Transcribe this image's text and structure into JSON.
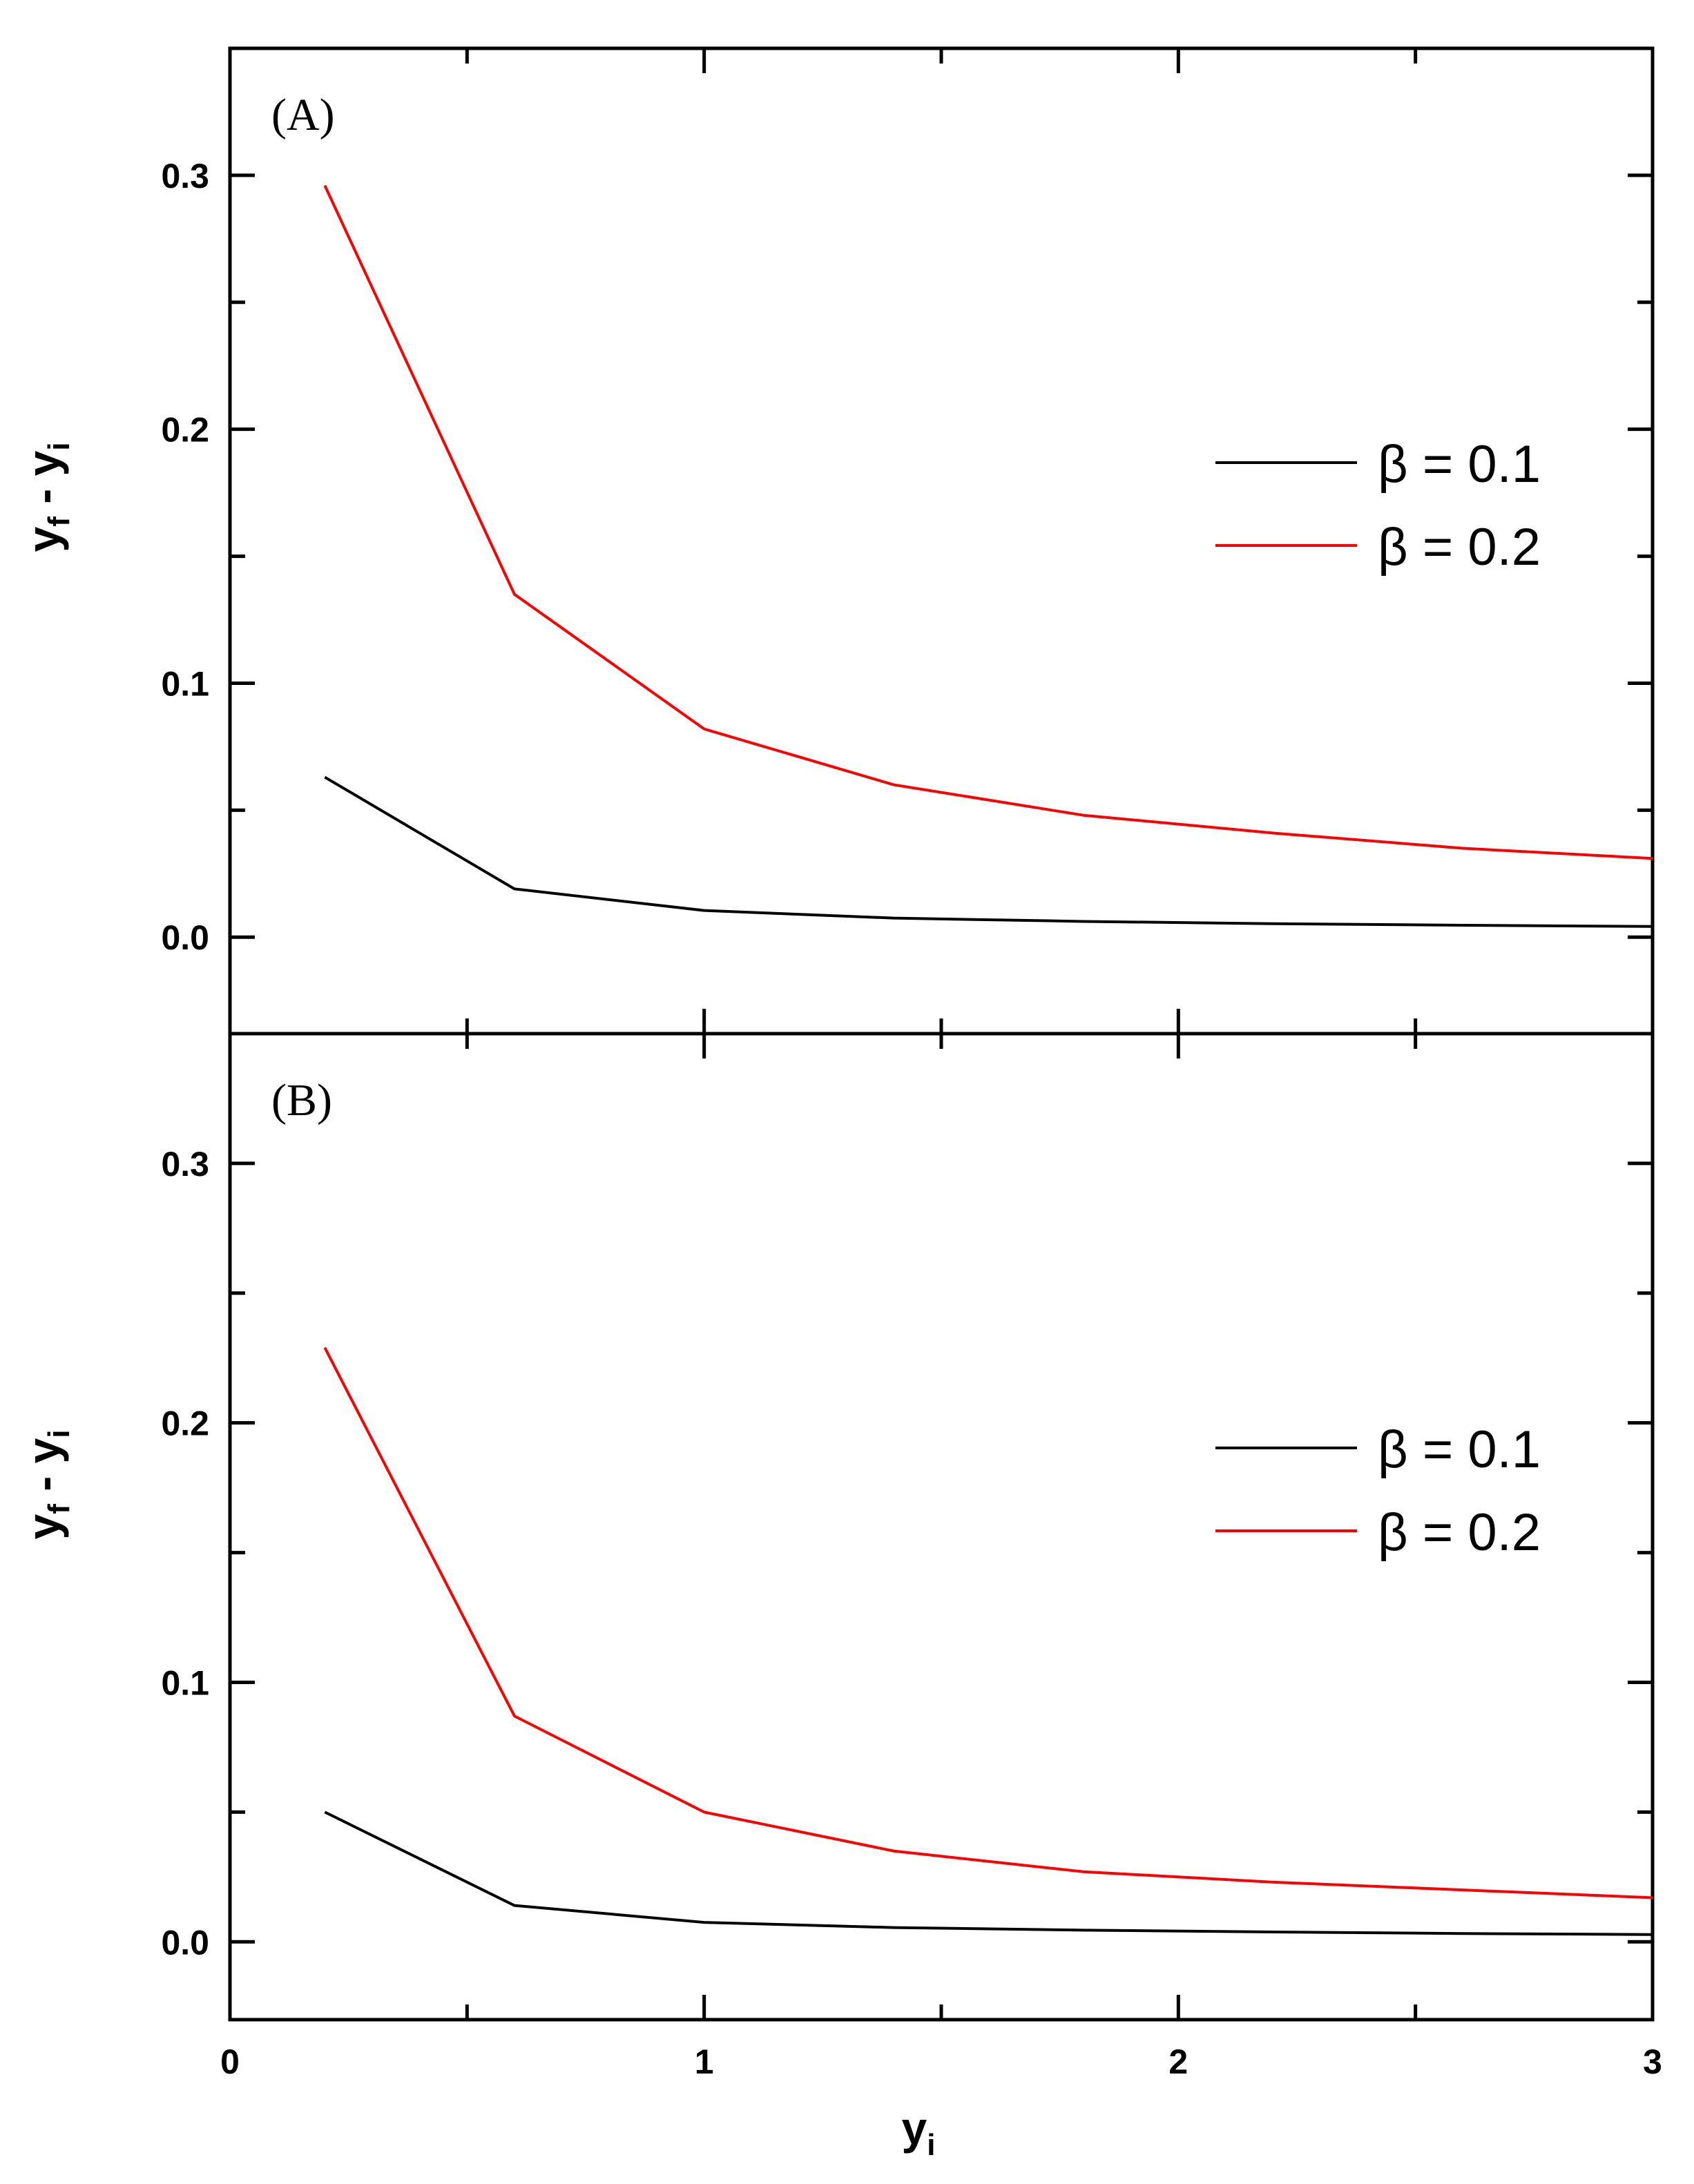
{
  "chart_data": [
    {
      "type": "line",
      "panel_label": "(A)",
      "ylabel": {
        "main": "y",
        "sub1": "f",
        "mid": " - y",
        "sub2": "i"
      },
      "ylim": [
        -0.038,
        0.35
      ],
      "xlim": [
        0,
        3
      ],
      "yticks": [
        0.0,
        0.1,
        0.2,
        0.3
      ],
      "ytick_labels": [
        "0.0",
        "0.1",
        "0.2",
        "0.3"
      ],
      "legend_position": "right-middle",
      "series": [
        {
          "name": "β = 0.1",
          "color": "#000000",
          "x": [
            0.2,
            0.6,
            1.0,
            1.4,
            1.8,
            2.2,
            2.6,
            3.0
          ],
          "y": [
            0.063,
            0.019,
            0.0105,
            0.0075,
            0.0062,
            0.0053,
            0.0047,
            0.0042
          ]
        },
        {
          "name": "β = 0.2",
          "color": "#ff0000",
          "x": [
            0.2,
            0.6,
            1.0,
            1.4,
            1.8,
            2.2,
            2.6,
            3.0
          ],
          "y": [
            0.296,
            0.135,
            0.082,
            0.06,
            0.048,
            0.041,
            0.035,
            0.031
          ]
        }
      ]
    },
    {
      "type": "line",
      "panel_label": "(B)",
      "ylabel": {
        "main": "y",
        "sub1": "f",
        "mid": " - y",
        "sub2": "i"
      },
      "xlabel": {
        "main": "y",
        "sub": "i"
      },
      "ylim": [
        -0.03,
        0.35
      ],
      "xlim": [
        0,
        3
      ],
      "xticks": [
        0,
        1,
        2,
        3
      ],
      "xtick_labels": [
        "0",
        "1",
        "2",
        "3"
      ],
      "yticks": [
        0.0,
        0.1,
        0.2,
        0.3
      ],
      "ytick_labels": [
        "0.0",
        "0.1",
        "0.2",
        "0.3"
      ],
      "legend_position": "right-middle",
      "series": [
        {
          "name": "β = 0.1",
          "color": "#000000",
          "x": [
            0.2,
            0.6,
            1.0,
            1.4,
            1.8,
            2.2,
            2.6,
            3.0
          ],
          "y": [
            0.05,
            0.014,
            0.0075,
            0.0055,
            0.0045,
            0.0038,
            0.0032,
            0.0028
          ]
        },
        {
          "name": "β = 0.2",
          "color": "#ff0000",
          "x": [
            0.2,
            0.6,
            1.0,
            1.4,
            1.8,
            2.2,
            2.6,
            3.0
          ],
          "y": [
            0.229,
            0.087,
            0.05,
            0.035,
            0.027,
            0.023,
            0.02,
            0.017
          ]
        }
      ]
    }
  ]
}
